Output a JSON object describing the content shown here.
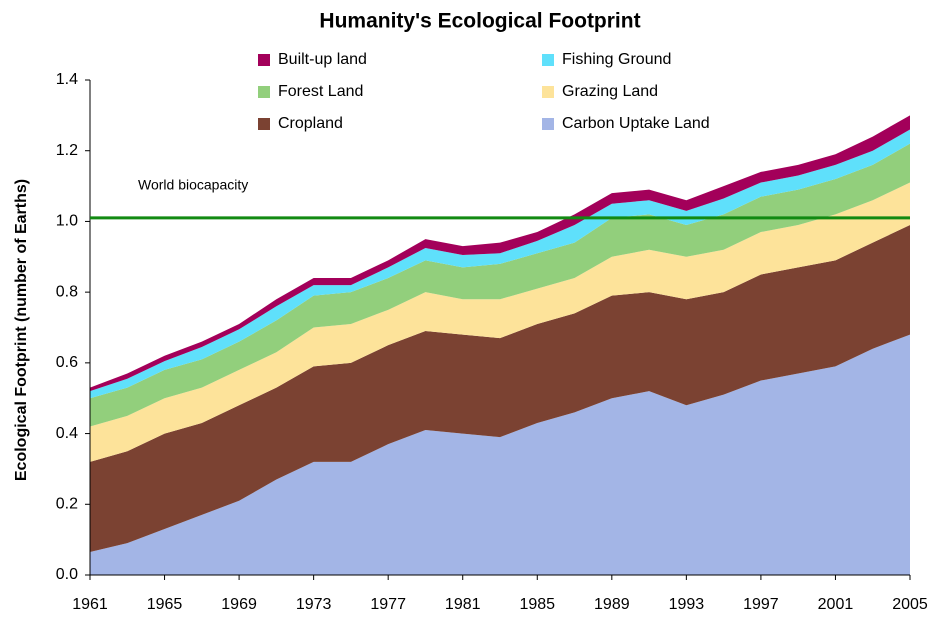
{
  "chart_data": {
    "type": "stacked_area",
    "title": "Humanity's Ecological Footprint",
    "y_label": "Ecological Footprint (number of Earths)",
    "x": [
      1961,
      1963,
      1965,
      1967,
      1969,
      1971,
      1973,
      1975,
      1977,
      1979,
      1981,
      1983,
      1985,
      1987,
      1989,
      1991,
      1993,
      1995,
      1997,
      1999,
      2001,
      2003,
      2005
    ],
    "series": [
      {
        "name": "Carbon Uptake Land",
        "color": "#a3b5e6",
        "values": [
          0.065,
          0.09,
          0.13,
          0.17,
          0.21,
          0.27,
          0.32,
          0.32,
          0.37,
          0.41,
          0.4,
          0.39,
          0.43,
          0.46,
          0.5,
          0.52,
          0.48,
          0.51,
          0.55,
          0.57,
          0.59,
          0.64,
          0.68
        ]
      },
      {
        "name": "Cropland",
        "color": "#7b4232",
        "values": [
          0.255,
          0.26,
          0.27,
          0.26,
          0.27,
          0.26,
          0.27,
          0.28,
          0.28,
          0.28,
          0.28,
          0.28,
          0.28,
          0.28,
          0.29,
          0.28,
          0.3,
          0.29,
          0.3,
          0.3,
          0.3,
          0.3,
          0.31
        ]
      },
      {
        "name": "Grazing Land",
        "color": "#fde39a",
        "values": [
          0.1,
          0.1,
          0.1,
          0.1,
          0.1,
          0.1,
          0.11,
          0.11,
          0.1,
          0.11,
          0.1,
          0.11,
          0.1,
          0.1,
          0.11,
          0.12,
          0.12,
          0.12,
          0.12,
          0.12,
          0.13,
          0.12,
          0.12
        ]
      },
      {
        "name": "Forest Land",
        "color": "#92cf7c",
        "values": [
          0.08,
          0.08,
          0.08,
          0.08,
          0.08,
          0.09,
          0.09,
          0.09,
          0.09,
          0.09,
          0.09,
          0.1,
          0.1,
          0.1,
          0.11,
          0.1,
          0.09,
          0.1,
          0.1,
          0.1,
          0.1,
          0.1,
          0.11
        ]
      },
      {
        "name": "Fishing Ground",
        "color": "#5fe0fb",
        "values": [
          0.02,
          0.025,
          0.025,
          0.035,
          0.035,
          0.04,
          0.03,
          0.02,
          0.03,
          0.035,
          0.035,
          0.03,
          0.035,
          0.05,
          0.04,
          0.04,
          0.04,
          0.045,
          0.04,
          0.04,
          0.04,
          0.04,
          0.04
        ]
      },
      {
        "name": "Built-up land",
        "color": "#a3005a",
        "values": [
          0.01,
          0.015,
          0.015,
          0.015,
          0.015,
          0.02,
          0.02,
          0.02,
          0.02,
          0.025,
          0.025,
          0.03,
          0.025,
          0.03,
          0.03,
          0.03,
          0.03,
          0.035,
          0.03,
          0.03,
          0.03,
          0.04,
          0.04
        ]
      }
    ],
    "xlim": [
      1961,
      2005
    ],
    "xticks": [
      1961,
      1965,
      1969,
      1973,
      1977,
      1981,
      1985,
      1989,
      1993,
      1997,
      2001,
      2005
    ],
    "ylim": [
      0,
      1.4
    ],
    "yticks": [
      {
        "value": 0,
        "label": "0.0"
      },
      0.2,
      0.4,
      0.6,
      0.8,
      {
        "value": 1,
        "label": "1.0"
      },
      1.2,
      1.4
    ],
    "reference_line": {
      "value": 1.01,
      "label": "World biocapacity",
      "color": "#128a12"
    }
  }
}
